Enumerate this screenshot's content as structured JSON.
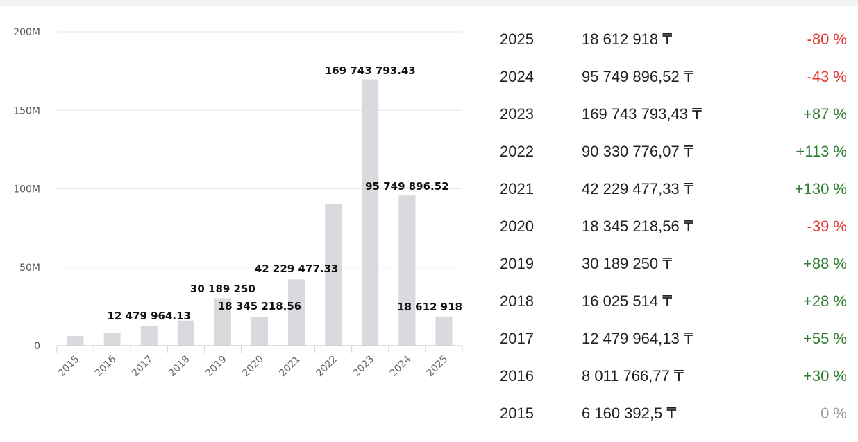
{
  "colors": {
    "bar": "#d9d9de",
    "grid": "#e6e6e6",
    "positive": "#2e7d32",
    "negative": "#e53935",
    "neutral": "#9e9e9e"
  },
  "chart_data": {
    "type": "bar",
    "title": "",
    "xlabel": "",
    "ylabel": "",
    "categories": [
      "2015",
      "2016",
      "2017",
      "2018",
      "2019",
      "2020",
      "2021",
      "2022",
      "2023",
      "2024",
      "2025"
    ],
    "values": [
      6160392.5,
      8011766.77,
      12479964.13,
      16025514,
      30189250,
      18345218.56,
      42229477.33,
      90330776.07,
      169743793.43,
      95749896.52,
      18612918
    ],
    "ylim": [
      0,
      200000000
    ],
    "yticks": [
      0,
      50000000,
      100000000,
      150000000,
      200000000
    ],
    "ytick_labels": [
      "0",
      "50M",
      "100M",
      "150M",
      "200M"
    ],
    "grid": true,
    "legend": "none",
    "data_labels": [
      {
        "category": "2017",
        "text": "12 479 964.13"
      },
      {
        "category": "2019",
        "text": "30 189 250"
      },
      {
        "category": "2020",
        "text": "18 345 218.56"
      },
      {
        "category": "2021",
        "text": "42 229 477.33"
      },
      {
        "category": "2023",
        "text": "169 743 793.43"
      },
      {
        "category": "2024",
        "text": "95 749 896.52"
      },
      {
        "category": "2025",
        "text": "18 612 918"
      }
    ]
  },
  "table": {
    "rows": [
      {
        "year": "2025",
        "amount": "18 612 918 ₸",
        "change": "-80 %",
        "trend": "negative"
      },
      {
        "year": "2024",
        "amount": "95 749 896,52 ₸",
        "change": "-43 %",
        "trend": "negative"
      },
      {
        "year": "2023",
        "amount": "169 743 793,43 ₸",
        "change": "+87 %",
        "trend": "positive"
      },
      {
        "year": "2022",
        "amount": "90 330 776,07 ₸",
        "change": "+113 %",
        "trend": "positive"
      },
      {
        "year": "2021",
        "amount": "42 229 477,33 ₸",
        "change": "+130 %",
        "trend": "positive"
      },
      {
        "year": "2020",
        "amount": "18 345 218,56 ₸",
        "change": "-39 %",
        "trend": "negative"
      },
      {
        "year": "2019",
        "amount": "30 189 250 ₸",
        "change": "+88 %",
        "trend": "positive"
      },
      {
        "year": "2018",
        "amount": "16 025 514 ₸",
        "change": "+28 %",
        "trend": "positive"
      },
      {
        "year": "2017",
        "amount": "12 479 964,13 ₸",
        "change": "+55 %",
        "trend": "positive"
      },
      {
        "year": "2016",
        "amount": "8 011 766,77 ₸",
        "change": "+30 %",
        "trend": "positive"
      },
      {
        "year": "2015",
        "amount": "6 160 392,5 ₸",
        "change": "0 %",
        "trend": "neutral"
      }
    ]
  }
}
